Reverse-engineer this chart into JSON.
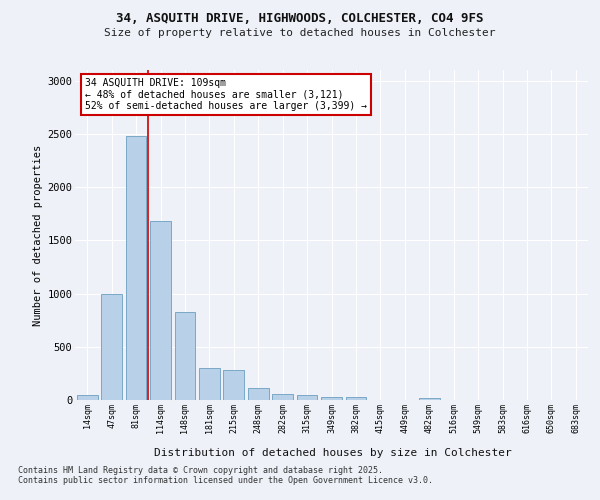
{
  "title_line1": "34, ASQUITH DRIVE, HIGHWOODS, COLCHESTER, CO4 9FS",
  "title_line2": "Size of property relative to detached houses in Colchester",
  "xlabel": "Distribution of detached houses by size in Colchester",
  "ylabel": "Number of detached properties",
  "categories": [
    "14sqm",
    "47sqm",
    "81sqm",
    "114sqm",
    "148sqm",
    "181sqm",
    "215sqm",
    "248sqm",
    "282sqm",
    "315sqm",
    "349sqm",
    "382sqm",
    "415sqm",
    "449sqm",
    "482sqm",
    "516sqm",
    "549sqm",
    "583sqm",
    "616sqm",
    "650sqm",
    "683sqm"
  ],
  "values": [
    50,
    1000,
    2480,
    1680,
    830,
    300,
    285,
    115,
    55,
    50,
    30,
    25,
    0,
    0,
    22,
    0,
    0,
    0,
    0,
    0,
    0
  ],
  "bar_color": "#b8d0e8",
  "bar_edge_color": "#6a9fc0",
  "vline_x": 2.5,
  "vline_color": "#cc0000",
  "annotation_text": "34 ASQUITH DRIVE: 109sqm\n← 48% of detached houses are smaller (3,121)\n52% of semi-detached houses are larger (3,399) →",
  "annotation_box_facecolor": "#ffffff",
  "annotation_box_edgecolor": "#cc0000",
  "background_color": "#eef2f8",
  "grid_color": "#ffffff",
  "ylim": [
    0,
    3100
  ],
  "yticks": [
    0,
    500,
    1000,
    1500,
    2000,
    2500,
    3000
  ],
  "footer_text": "Contains HM Land Registry data © Crown copyright and database right 2025.\nContains public sector information licensed under the Open Government Licence v3.0.",
  "fig_width": 6.0,
  "fig_height": 5.0,
  "dpi": 100
}
